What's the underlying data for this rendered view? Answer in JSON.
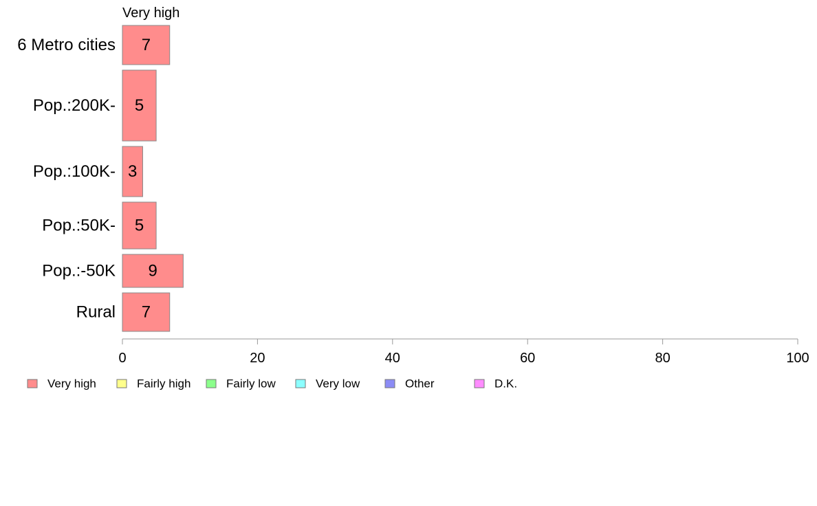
{
  "chart_data": {
    "type": "bar",
    "orientation": "horizontal",
    "series_header": "Very high",
    "categories": [
      "6 Metro cities",
      "Pop.:200K-",
      "Pop.:100K-",
      "Pop.:50K-",
      "Pop.:-50K",
      "Rural"
    ],
    "series": [
      {
        "name": "Very high",
        "values": [
          7,
          5,
          3,
          5,
          9,
          7
        ]
      }
    ],
    "data_labels": [
      "7",
      "5",
      "3",
      "5",
      "9",
      "7"
    ],
    "xlim": [
      0,
      100
    ],
    "x_ticks": [
      0,
      20,
      40,
      60,
      80,
      100
    ],
    "x_tick_labels": [
      "0",
      "20",
      "40",
      "60",
      "80",
      "100"
    ],
    "grid": false,
    "legend_position": "bottom",
    "legend": [
      {
        "label": "Very high",
        "color": "#FF8C8C"
      },
      {
        "label": "Fairly high",
        "color": "#FFFF8C"
      },
      {
        "label": "Fairly low",
        "color": "#8CFF8C"
      },
      {
        "label": "Very low",
        "color": "#8CFFFF"
      },
      {
        "label": "Other",
        "color": "#8C8CF5"
      },
      {
        "label": "D.K.",
        "color": "#FF8CFF"
      }
    ],
    "bar_color": "#FF8C8C",
    "bar_stroke": "#888888",
    "axis_color": "#999999"
  }
}
